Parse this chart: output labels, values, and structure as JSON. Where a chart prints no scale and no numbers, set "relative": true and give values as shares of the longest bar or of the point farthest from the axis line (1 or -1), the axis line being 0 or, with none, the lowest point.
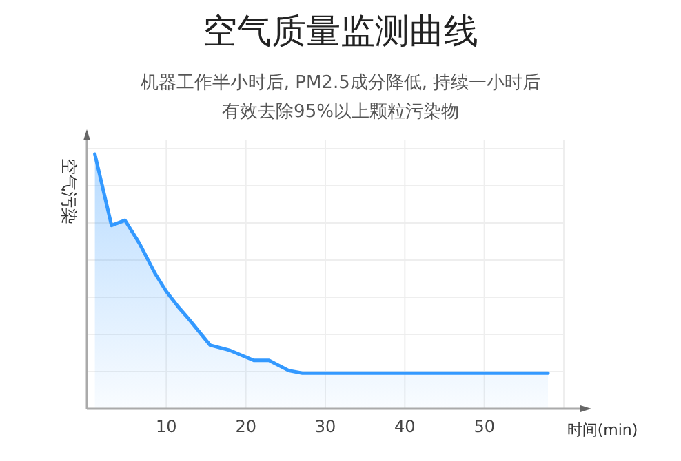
{
  "chart_data": {
    "type": "area",
    "title": "空气质量监测曲线",
    "subtitle": "机器工作半小时后, PM2.5成分降低, 持续一小时后有效去除95%以上颗粒污染物",
    "xlabel": "时间(min)",
    "ylabel": "空气污染",
    "relative": true,
    "grid": true,
    "marker": "none",
    "line_style": "solid",
    "color": "#3399ff",
    "x": [
      1.0,
      3.1,
      4.8,
      6.6,
      8.6,
      10.0,
      11.5,
      12.9,
      15.5,
      17.9,
      21.0,
      22.9,
      25.4,
      27.1,
      58
    ],
    "values": [
      1.0,
      0.72,
      0.74,
      0.65,
      0.53,
      0.46,
      0.4,
      0.35,
      0.25,
      0.23,
      0.19,
      0.19,
      0.15,
      0.14,
      0.14
    ],
    "xlim": [
      0,
      60
    ],
    "xticks": [
      10,
      20,
      30,
      40,
      50
    ]
  }
}
